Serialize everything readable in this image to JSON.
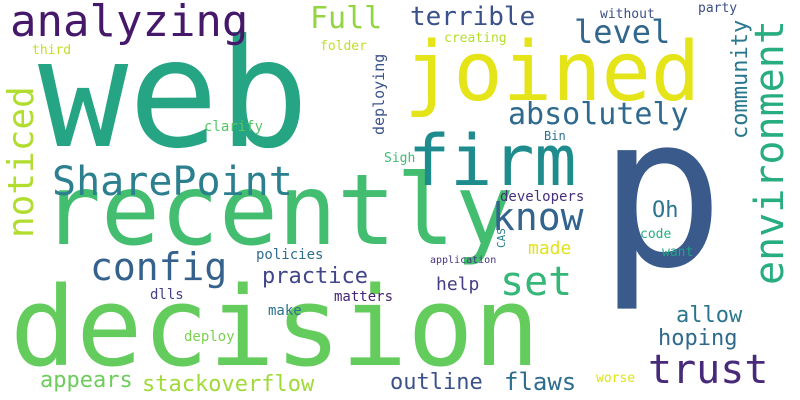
{
  "words": [
    {
      "text": "web",
      "color": "#26a584"
    },
    {
      "text": "p",
      "color": "#3b5a8c"
    },
    {
      "text": "decision",
      "color": "#64cc5d"
    },
    {
      "text": "recently",
      "color": "#43bd6f"
    },
    {
      "text": "joined",
      "color": "#e4e419"
    },
    {
      "text": "firm",
      "color": "#1e8c8d"
    },
    {
      "text": "environment",
      "color": "#28ad80"
    },
    {
      "text": "analyzing",
      "color": "#45186a"
    },
    {
      "text": "SharePoint",
      "color": "#2b7f8e"
    },
    {
      "text": "config",
      "color": "#35628d"
    },
    {
      "text": "noticed",
      "color": "#b1dd2e"
    },
    {
      "text": "trust",
      "color": "#482a7a"
    },
    {
      "text": "know",
      "color": "#33648d"
    },
    {
      "text": "set",
      "color": "#35b778"
    },
    {
      "text": "Full",
      "color": "#93d541"
    },
    {
      "text": "level",
      "color": "#31678d"
    },
    {
      "text": "absolutely",
      "color": "#30698e"
    },
    {
      "text": "terrible",
      "color": "#3b518b"
    },
    {
      "text": "community",
      "color": "#2a788e"
    },
    {
      "text": "practice",
      "color": "#404688"
    },
    {
      "text": "appears",
      "color": "#6ccd5a"
    },
    {
      "text": "stackoverflow",
      "color": "#a0da39"
    },
    {
      "text": "outline",
      "color": "#3b518b"
    },
    {
      "text": "flaws",
      "color": "#2e6d8e"
    },
    {
      "text": "allow",
      "color": "#2b758e"
    },
    {
      "text": "hoping",
      "color": "#2f6a8d"
    },
    {
      "text": "help",
      "color": "#433d84"
    },
    {
      "text": "made",
      "color": "#e0e318"
    },
    {
      "text": "Oh",
      "color": "#2b758e"
    },
    {
      "text": "deploying",
      "color": "#3b528b"
    },
    {
      "text": "clarify",
      "color": "#56c667"
    },
    {
      "text": "developers",
      "color": "#46307e"
    },
    {
      "text": "policies",
      "color": "#2e6e8e"
    },
    {
      "text": "dlls",
      "color": "#424186"
    },
    {
      "text": "matters",
      "color": "#482475"
    },
    {
      "text": "deploy",
      "color": "#7ad151"
    },
    {
      "text": "make",
      "color": "#2c718e"
    },
    {
      "text": "code",
      "color": "#27ad81"
    },
    {
      "text": "want",
      "color": "#20a386"
    },
    {
      "text": "worse",
      "color": "#dde318"
    },
    {
      "text": "Sigh",
      "color": "#3fbc73"
    },
    {
      "text": "Bin",
      "color": "#2d708e"
    },
    {
      "text": "CAS",
      "color": "#27808e"
    },
    {
      "text": "application",
      "color": "#46337f"
    },
    {
      "text": "without",
      "color": "#3d4e8a"
    },
    {
      "text": "party",
      "color": "#3d4e8a"
    },
    {
      "text": "third",
      "color": "#c2df23"
    },
    {
      "text": "folder",
      "color": "#c2df23"
    },
    {
      "text": "creating",
      "color": "#b5de2b"
    }
  ]
}
